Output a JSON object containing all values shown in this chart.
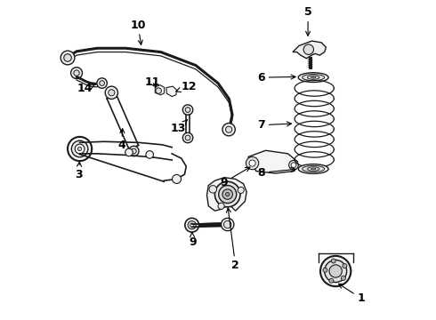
{
  "bg_color": "#ffffff",
  "line_color": "#1a1a1a",
  "components": {
    "stab_bar": {
      "points_x": [
        0.02,
        0.06,
        0.13,
        0.22,
        0.32,
        0.42,
        0.5,
        0.54,
        0.55,
        0.54,
        0.52
      ],
      "points_y": [
        0.82,
        0.84,
        0.855,
        0.855,
        0.845,
        0.8,
        0.74,
        0.69,
        0.64,
        0.6,
        0.56
      ]
    },
    "labels": {
      "1": [
        0.95,
        0.08,
        0.87,
        0.12
      ],
      "2": [
        0.56,
        0.17,
        0.56,
        0.22
      ],
      "3": [
        0.07,
        0.46,
        0.09,
        0.52
      ],
      "4": [
        0.2,
        0.55,
        0.185,
        0.62
      ],
      "5": [
        0.78,
        0.96,
        0.78,
        0.88
      ],
      "6": [
        0.64,
        0.73,
        0.71,
        0.73
      ],
      "7": [
        0.64,
        0.6,
        0.71,
        0.6
      ],
      "8": [
        0.64,
        0.46,
        0.71,
        0.46
      ],
      "9a": [
        0.52,
        0.43,
        0.58,
        0.5
      ],
      "9b": [
        0.42,
        0.24,
        0.43,
        0.29
      ],
      "10": [
        0.25,
        0.92,
        0.26,
        0.855
      ],
      "11": [
        0.3,
        0.73,
        0.325,
        0.715
      ],
      "12": [
        0.41,
        0.72,
        0.375,
        0.715
      ],
      "13": [
        0.38,
        0.6,
        0.4,
        0.635
      ],
      "14": [
        0.085,
        0.73,
        0.115,
        0.74
      ]
    }
  }
}
